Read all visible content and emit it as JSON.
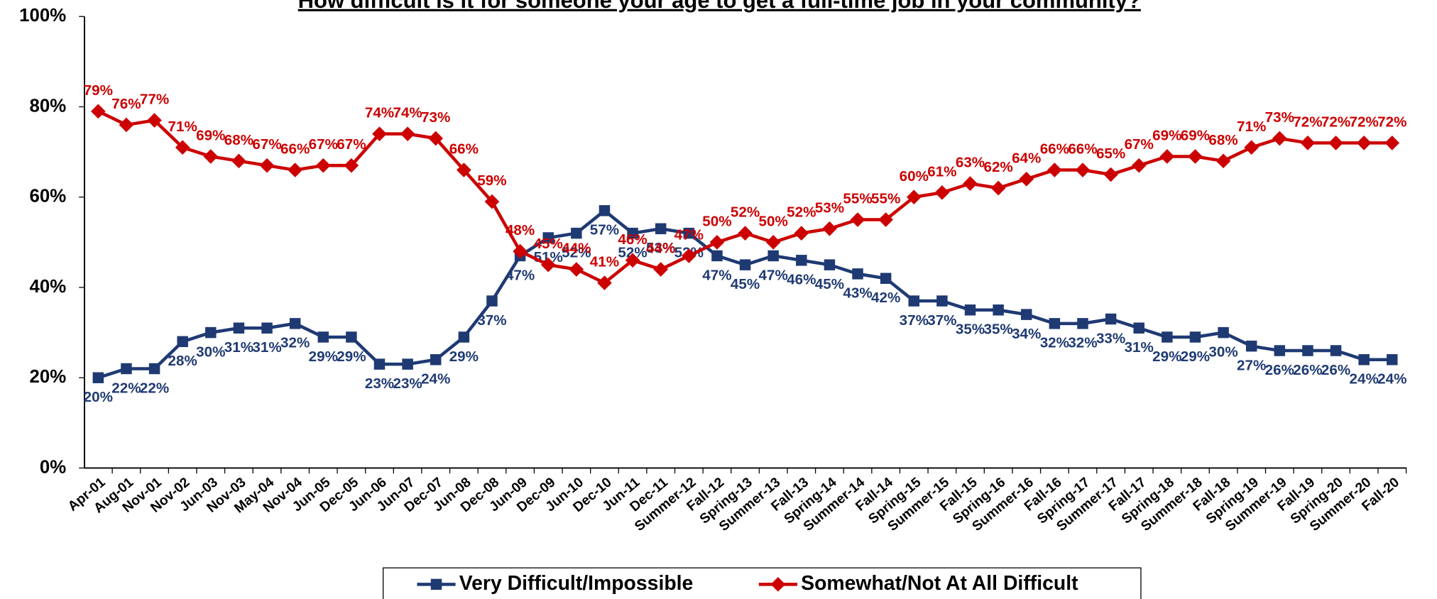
{
  "chart_data": {
    "type": "line",
    "title": "How difficult is it for someone your age to get a full-time job in your community?",
    "categories": [
      "Apr-01",
      "Aug-01",
      "Nov-01",
      "Nov-02",
      "Jun-03",
      "Nov-03",
      "May-04",
      "Nov-04",
      "Jun-05",
      "Dec-05",
      "Jun-06",
      "Jun-07",
      "Dec-07",
      "Jun-08",
      "Dec-08",
      "Jun-09",
      "Dec-09",
      "Jun-10",
      "Dec-10",
      "Jun-11",
      "Dec-11",
      "Summer-12",
      "Fall-12",
      "Spring-13",
      "Summer-13",
      "Fall-13",
      "Spring-14",
      "Summer-14",
      "Fall-14",
      "Spring-15",
      "Summer-15",
      "Fall-15",
      "Spring-16",
      "Summer-16",
      "Fall-16",
      "Spring-17",
      "Summer-17",
      "Fall-17",
      "Spring-18",
      "Summer-18",
      "Fall-18",
      "Spring-19",
      "Summer-19",
      "Fall-19",
      "Spring-20",
      "Summer-20",
      "Fall-20"
    ],
    "series": [
      {
        "name": "Very Difficult/Impossible",
        "color": "#1f3a73",
        "marker": "square",
        "values": [
          20,
          22,
          22,
          28,
          30,
          31,
          31,
          32,
          29,
          29,
          23,
          23,
          24,
          29,
          37,
          47,
          51,
          52,
          57,
          52,
          53,
          52,
          47,
          45,
          47,
          46,
          45,
          43,
          42,
          37,
          37,
          35,
          35,
          34,
          32,
          32,
          33,
          31,
          29,
          29,
          30,
          27,
          26,
          26,
          26,
          24,
          24
        ],
        "value_labels": [
          "20%",
          "22%",
          "22%",
          "28%",
          "30%",
          "31%",
          "31%",
          "32%",
          "29%",
          "29%",
          "23%",
          "23%",
          "24%",
          "29%",
          "37%",
          "47%",
          "51%",
          "52%",
          "57%",
          "52%",
          "53%",
          "52%",
          "47%",
          "45%",
          "47%",
          "46%",
          "45%",
          "43%",
          "42%",
          "37%",
          "37%",
          "35%",
          "35%",
          "34%",
          "32%",
          "32%",
          "33%",
          "31%",
          "29%",
          "29%",
          "30%",
          "27%",
          "26%",
          "26%",
          "26%",
          "24%",
          "24%"
        ]
      },
      {
        "name": "Somewhat/Not At All Difficult",
        "color": "#cc0000",
        "marker": "diamond",
        "values": [
          79,
          76,
          77,
          71,
          69,
          68,
          67,
          66,
          67,
          67,
          74,
          74,
          73,
          66,
          59,
          48,
          45,
          44,
          41,
          46,
          44,
          47,
          50,
          52,
          50,
          52,
          53,
          55,
          55,
          60,
          61,
          63,
          62,
          64,
          66,
          66,
          65,
          67,
          69,
          69,
          68,
          71,
          73,
          72,
          72,
          72,
          72
        ],
        "value_labels": [
          "79%",
          "76%",
          "77%",
          "71%",
          "69%",
          "68%",
          "67%",
          "66%",
          "67%",
          "67%",
          "74%",
          "74%",
          "73%",
          "66%",
          "59%",
          "48%",
          "45%",
          "44%",
          "41%",
          "46%",
          "44%",
          "47%",
          "50%",
          "52%",
          "50%",
          "52%",
          "53%",
          "55%",
          "55%",
          "60%",
          "61%",
          "63%",
          "62%",
          "64%",
          "66%",
          "66%",
          "65%",
          "67%",
          "69%",
          "69%",
          "68%",
          "71%",
          "73%",
          "72%",
          "72%",
          "72%",
          "72%"
        ]
      }
    ],
    "ylim": [
      0,
      100
    ],
    "yticks": [
      {
        "value": 0,
        "label": "0%"
      },
      {
        "value": 20,
        "label": "20%"
      },
      {
        "value": 40,
        "label": "40%"
      },
      {
        "value": 60,
        "label": "60%"
      },
      {
        "value": 80,
        "label": "80%"
      },
      {
        "value": 100,
        "label": "100%"
      }
    ],
    "grid": false,
    "legend": "bottom"
  }
}
